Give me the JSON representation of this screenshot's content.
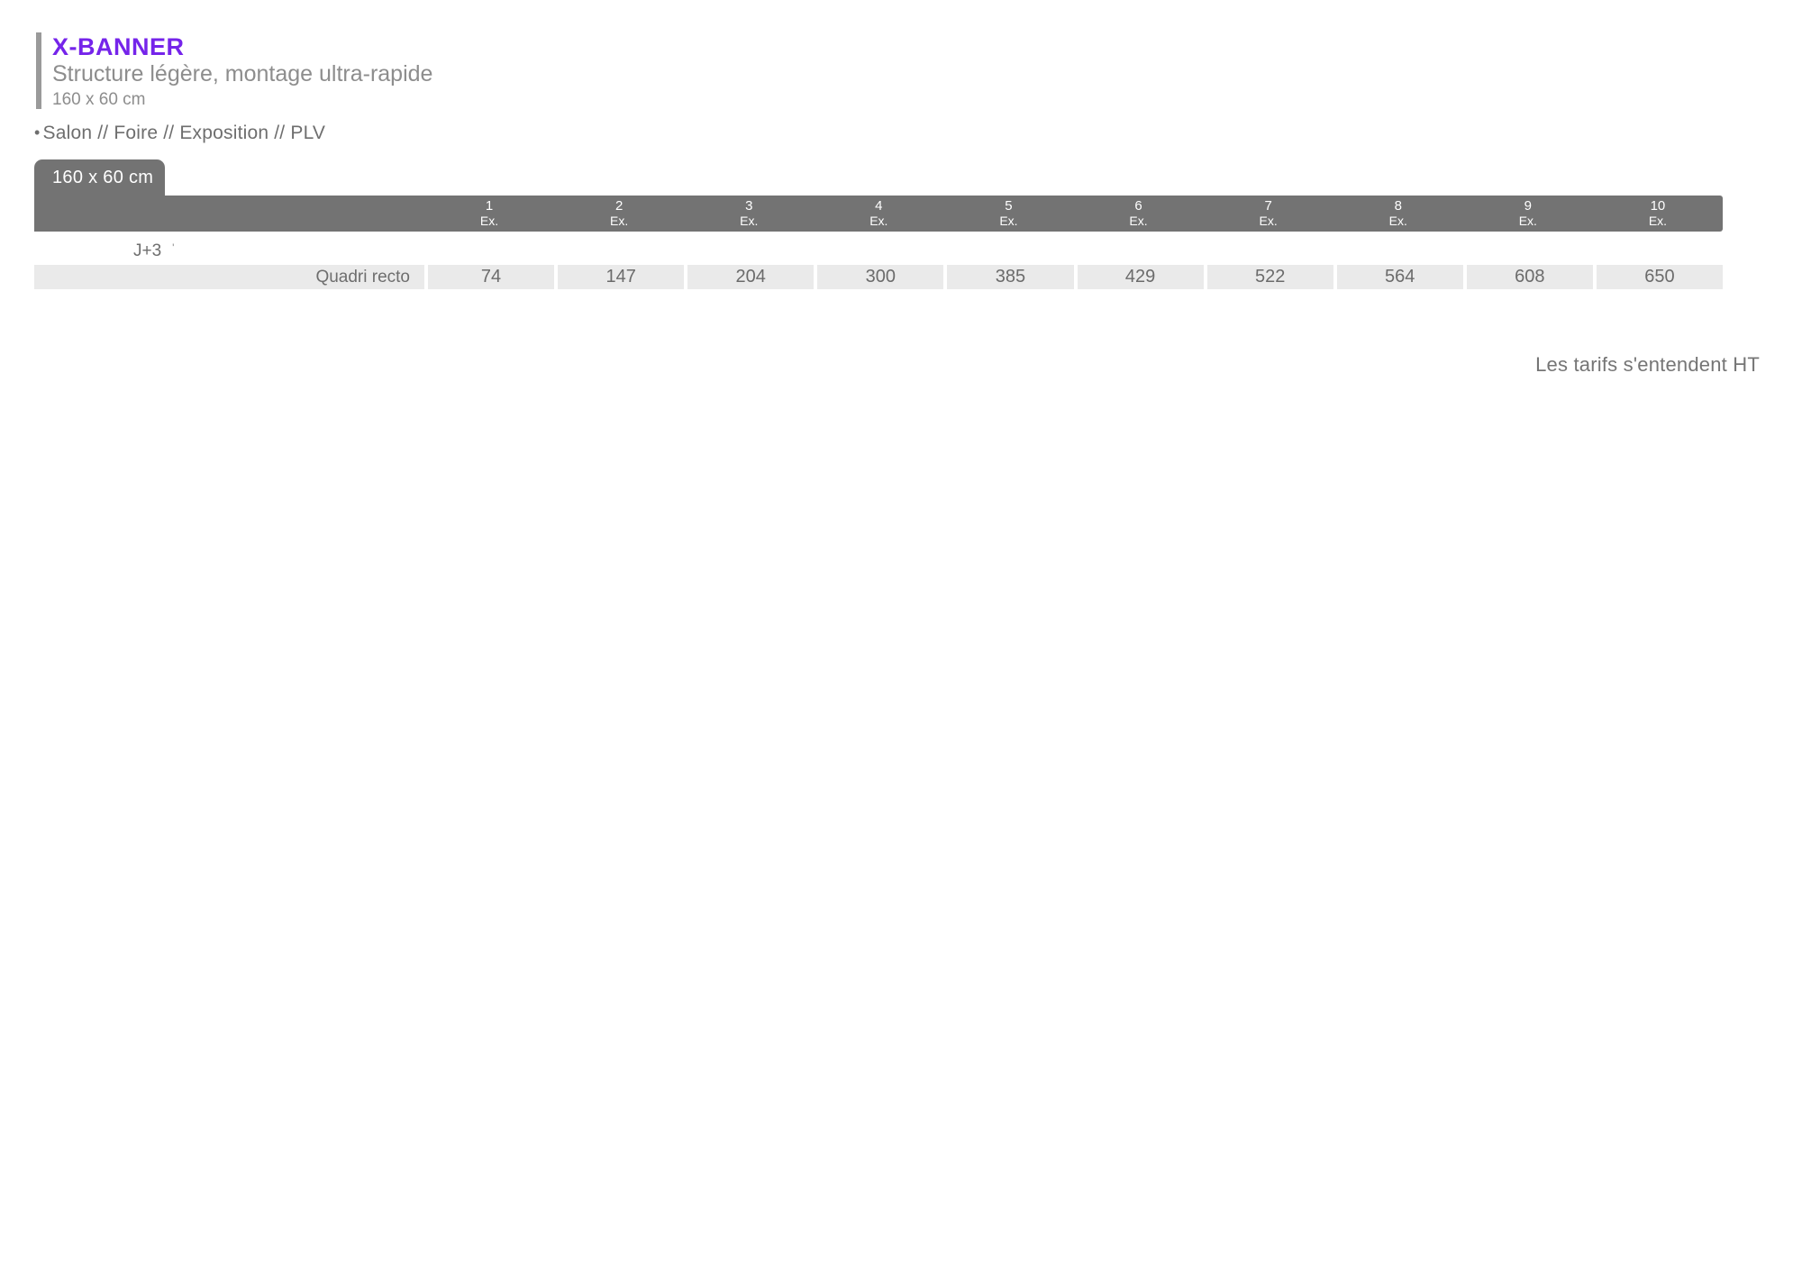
{
  "product": {
    "title": "X-BANNER",
    "subtitle": "Structure légère, montage ultra-rapide",
    "size": "160 x 60 cm",
    "bullet": "•",
    "tags": "Salon // Foire // Exposition // PLV"
  },
  "tab": {
    "label": "160 x 60 cm"
  },
  "pricing_table": {
    "delivery": "J+3",
    "delivery_mark": "'",
    "unit_label": "Ex.",
    "quantities": [
      "1",
      "2",
      "3",
      "4",
      "5",
      "6",
      "7",
      "8",
      "9",
      "10"
    ],
    "rows": [
      {
        "label": "Quadri recto",
        "values": [
          "74",
          "147",
          "204",
          "300",
          "385",
          "429",
          "522",
          "564",
          "608",
          "650"
        ]
      }
    ]
  },
  "footer_note": "Les tarifs s'entendent HT",
  "colors": {
    "accent_purple": "#7524EA",
    "bar_gray": "#737373",
    "row_gray": "#EAEAEA",
    "accent_side_bar": "#9a9a9a",
    "text_gray": "#6e6e6e"
  }
}
